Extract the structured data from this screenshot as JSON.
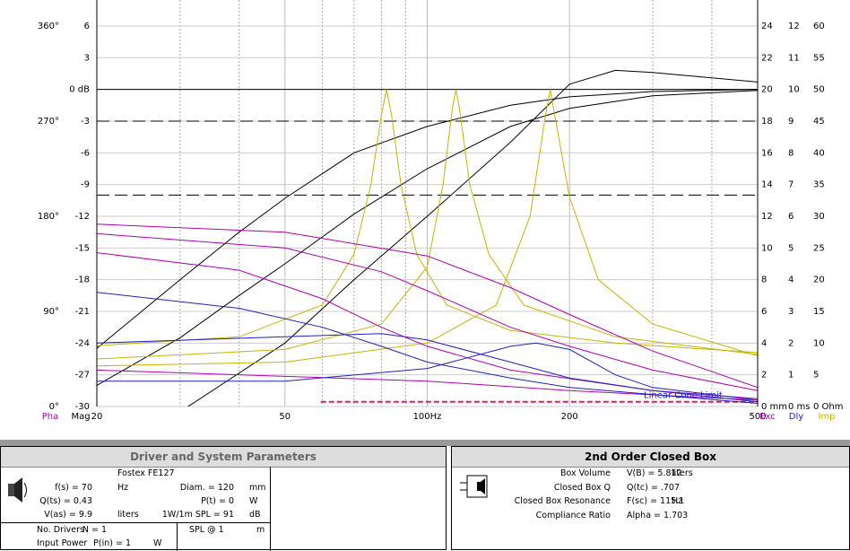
{
  "chart_data": {
    "type": "line",
    "xlim": [
      20,
      500
    ],
    "xticks": [
      20,
      50,
      {
        "value": 100,
        "label": "100Hz"
      },
      200,
      500
    ],
    "xgrid": [
      30,
      40,
      60,
      70,
      80,
      90,
      300,
      400
    ],
    "grid": true,
    "axes": [
      {
        "name": "Pha",
        "color": "#b000b0",
        "lim": [
          0,
          384.6
        ],
        "ticks": [
          {
            "value": 0,
            "label": "0°"
          },
          {
            "value": 90,
            "label": "90°"
          },
          {
            "value": 180,
            "label": "180°"
          },
          {
            "value": 270,
            "label": "270°"
          },
          {
            "value": 360,
            "label": "360°"
          }
        ]
      },
      {
        "name": "Mag",
        "color": "#000000",
        "lim": [
          -30,
          8.46
        ],
        "ticks": [
          -30,
          -27,
          -24,
          -21,
          -18,
          -15,
          -12,
          -9,
          -6,
          -3,
          {
            "value": 0,
            "label": "0 dB"
          },
          3,
          6
        ],
        "ref_lines": [
          {
            "value": 0,
            "style": "solid"
          },
          {
            "value": -3,
            "style": "dashed"
          },
          {
            "value": -10,
            "style": "dashed"
          }
        ]
      },
      {
        "name": "Exc",
        "color": "#b000b0",
        "lim": [
          0,
          25.64
        ],
        "ticks": [
          {
            "value": 0,
            "label": "0 mm"
          },
          2,
          4,
          6,
          8,
          10,
          12,
          14,
          16,
          18,
          20,
          22,
          24
        ]
      },
      {
        "name": "Dly",
        "color": "#2020c0",
        "lim": [
          0,
          12.82
        ],
        "ticks": [
          {
            "value": 0,
            "label": "0 ms"
          },
          1,
          2,
          3,
          4,
          5,
          6,
          7,
          8,
          9,
          10,
          11,
          12
        ]
      },
      {
        "name": "Imp",
        "color": "#c8b400",
        "lim": [
          0,
          64.1
        ],
        "ticks": [
          {
            "value": 0,
            "label": "0 Ohm"
          },
          5,
          10,
          15,
          20,
          25,
          30,
          35,
          40,
          45,
          50,
          55,
          60
        ]
      }
    ],
    "annotation": {
      "text": "Linear Cone Limit",
      "axis": "Exc",
      "value": 0.3,
      "color": "#e0205a"
    },
    "series": [
      {
        "axis": "Mag",
        "color": "#000000",
        "x": [
          20,
          30,
          40,
          50,
          70,
          100,
          150,
          200,
          300,
          500
        ],
        "values": [
          -24.5,
          -18,
          -13.5,
          -10.3,
          -6,
          -3.5,
          -1.5,
          -0.7,
          -0.2,
          0
        ]
      },
      {
        "axis": "Mag",
        "color": "#000000",
        "x": [
          20,
          30,
          40,
          50,
          70,
          100,
          150,
          200,
          300,
          500
        ],
        "values": [
          -28,
          -23.5,
          -19.5,
          -16.5,
          -11.8,
          -7.5,
          -3.5,
          -1.8,
          -0.6,
          -0.1
        ]
      },
      {
        "axis": "Mag",
        "color": "#000000",
        "x": [
          20,
          30,
          50,
          70,
          100,
          150,
          200,
          250,
          300,
          500
        ],
        "values": [
          -38,
          -30.5,
          -24,
          -18,
          -12,
          -5,
          0.5,
          1.8,
          1.6,
          0.7
        ]
      },
      {
        "axis": "Imp",
        "color": "#c8b400",
        "x": [
          20,
          40,
          60,
          70,
          76,
          80,
          82,
          84,
          88,
          95,
          110,
          150,
          250,
          500
        ],
        "values": [
          9.6,
          11,
          16,
          24,
          35,
          46,
          50,
          46,
          35,
          24,
          16,
          12,
          10,
          8.5
        ]
      },
      {
        "axis": "Imp",
        "color": "#c8b400",
        "x": [
          20,
          50,
          80,
          100,
          108,
          113,
          115,
          117,
          123,
          135,
          160,
          250,
          500
        ],
        "values": [
          7.5,
          9,
          13,
          22,
          35,
          47,
          50,
          47,
          35,
          24,
          16,
          11,
          8.2
        ]
      },
      {
        "axis": "Imp",
        "color": "#c8b400",
        "x": [
          20,
          50,
          100,
          140,
          165,
          178,
          182,
          186,
          200,
          230,
          300,
          500
        ],
        "values": [
          6.4,
          7,
          10,
          16,
          30,
          46,
          50,
          46,
          33,
          20,
          13,
          8
        ]
      },
      {
        "axis": "Exc",
        "color": "#b000b0",
        "x": [
          20,
          50,
          100,
          150,
          200,
          300,
          500
        ],
        "values": [
          11.5,
          11,
          9.5,
          7.5,
          5.8,
          3.5,
          1.2
        ]
      },
      {
        "axis": "Exc",
        "color": "#b000b0",
        "x": [
          20,
          50,
          80,
          100,
          150,
          200,
          300,
          500
        ],
        "values": [
          10.9,
          10,
          8.5,
          7.3,
          5,
          3.8,
          2.3,
          1
        ]
      },
      {
        "axis": "Exc",
        "color": "#b000b0",
        "x": [
          20,
          40,
          60,
          80,
          100,
          150,
          300,
          500
        ],
        "values": [
          9.7,
          8.6,
          6.8,
          5,
          3.8,
          2.3,
          1,
          0.5
        ]
      },
      {
        "axis": "Exc",
        "color": "#b000b0",
        "x": [
          20,
          100,
          200,
          500
        ],
        "values": [
          2.3,
          1.6,
          1,
          0.4
        ]
      },
      {
        "axis": "Dly",
        "color": "#2020c0",
        "x": [
          20,
          40,
          60,
          80,
          100,
          150,
          200,
          500
        ],
        "values": [
          3.6,
          3.1,
          2.5,
          1.9,
          1.4,
          0.9,
          0.6,
          0.1
        ]
      },
      {
        "axis": "Dly",
        "color": "#2020c0",
        "x": [
          20,
          50,
          80,
          100,
          150,
          200,
          300,
          500
        ],
        "values": [
          2,
          2.2,
          2.3,
          2.1,
          1.4,
          0.9,
          0.5,
          0.15
        ]
      },
      {
        "axis": "Dly",
        "color": "#2020c0",
        "x": [
          20,
          50,
          100,
          150,
          170,
          200,
          250,
          300,
          500
        ],
        "values": [
          0.8,
          0.8,
          1.2,
          1.9,
          2,
          1.8,
          1,
          0.6,
          0.2
        ]
      }
    ]
  },
  "driver_panel": {
    "title": "Driver and System Parameters",
    "driver": "Fostex FE127",
    "left": [
      {
        "text": "f(s) = 70",
        "unit": "Hz"
      },
      {
        "text": "Q(ts) = 0.43"
      },
      {
        "text": "V(as) = 9.9",
        "unit": "liters"
      }
    ],
    "right": [
      {
        "text": "Diam. = 120",
        "unit": "mm"
      },
      {
        "text": "P(t) = 0",
        "unit": "W"
      },
      {
        "text": "1W/1m SPL = 91",
        "unit": "dB"
      }
    ],
    "drivers": {
      "label": "No. Drivers",
      "text": "N = 1"
    },
    "power": {
      "label": "Input Power",
      "text": "P(in) = 1",
      "unit": "W"
    },
    "spl": {
      "text": "SPL @ 1",
      "unit": "m"
    }
  },
  "box_panel": {
    "title": "2nd Order Closed Box",
    "rows": [
      {
        "label": "Box Volume",
        "text": "V(B) = 5.812",
        "unit": "liters"
      },
      {
        "label": "Closed Box Q",
        "text": "Q(tc) = .707"
      },
      {
        "label": "Closed Box Resonance",
        "text": "F(sc) = 115.1",
        "unit": "Hz"
      },
      {
        "label": "Compliance Ratio",
        "text": "Alpha = 1.703"
      }
    ]
  }
}
